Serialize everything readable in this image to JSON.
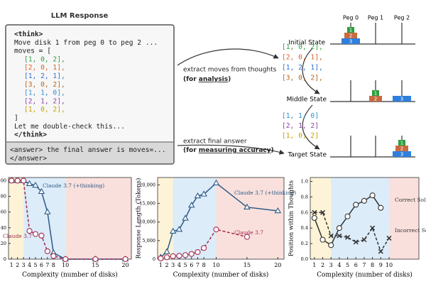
{
  "diagram": {
    "response_title": "LLM Response",
    "think_lines": [
      "<think>",
      "Move disk 1 from peg 0 to peg 2 ...",
      "moves = ["
    ],
    "think_moves": [
      {
        "text": "[1, 0, 2],",
        "color": "#2e9e3e"
      },
      {
        "text": "[2, 0, 1],",
        "color": "#d9622b"
      },
      {
        "text": "[1, 2, 1],",
        "color": "#2f6fd6"
      },
      {
        "text": "[3, 0, 2],",
        "color": "#b5651d"
      },
      {
        "text": "[1, 1, 0],",
        "color": "#2f8fd0"
      },
      {
        "text": "[2, 1, 2],",
        "color": "#8e44ad"
      },
      {
        "text": "[1, 0, 2],",
        "color": "#c8a000"
      }
    ],
    "think_end": [
      "]",
      "Let me double-check this...",
      "</think>"
    ],
    "answer_lines": [
      "<answer> the final answer is moves=...",
      "</answer>"
    ],
    "extract_moves": {
      "line1": "extract moves  from thoughts",
      "line2_pre": "(for ",
      "line2_em": "analysis",
      "line2_post": ")"
    },
    "extract_answer": {
      "line1": "extract final answer",
      "line2_pre": "(for ",
      "line2_em": "measuring accuracy",
      "line2_post": ")"
    },
    "pegs": [
      "Peg 0",
      "Peg 1",
      "Peg 2"
    ],
    "states": [
      "Initial State",
      "Middle State",
      "Target State"
    ],
    "disk_labels": [
      "1",
      "2",
      "3"
    ],
    "moves_a": [
      {
        "text": "[1, 0, 2],",
        "color": "#2e9e3e"
      },
      {
        "text": "[2, 0, 1],",
        "color": "#d9622b"
      },
      {
        "text": "[1, 2, 1],",
        "color": "#2f6fd6"
      },
      {
        "text": "[3, 0, 2],",
        "color": "#b5651d"
      }
    ],
    "moves_b": [
      {
        "text": "[1, 1, 0]",
        "color": "#2f8fd0"
      },
      {
        "text": "[2, 1, 2]",
        "color": "#8e44ad"
      },
      {
        "text": "[1, 0, 2]",
        "color": "#c8a000"
      }
    ]
  },
  "chart_data": [
    {
      "type": "line",
      "x_label": "Complexity (number of disks)",
      "xlim": [
        0.5,
        21
      ],
      "xticks": [
        1,
        2,
        3,
        4,
        5,
        6,
        7,
        8,
        10,
        15,
        20
      ],
      "ylim": [
        0,
        104
      ],
      "yticks": [
        0,
        20,
        40,
        60,
        80,
        100
      ],
      "regions": [
        {
          "from": 0.5,
          "to": 3,
          "color": "#fdf3d6"
        },
        {
          "from": 3,
          "to": 10,
          "color": "#dcecf9"
        },
        {
          "from": 10,
          "to": 21,
          "color": "#f9e0dc"
        }
      ],
      "series": [
        {
          "name": "Claude 3.7 (+thinking)",
          "color": "#2c5a86",
          "marker": "triangle",
          "dashed": false,
          "x": [
            1,
            2,
            3,
            4,
            5,
            6,
            7,
            8,
            10,
            15,
            20
          ],
          "values": [
            100,
            100,
            100,
            96,
            94,
            86,
            60,
            8,
            0,
            0,
            0
          ]
        },
        {
          "name": "Claude 3.7",
          "color": "#a3284f",
          "marker": "circle",
          "dashed": true,
          "x": [
            1,
            2,
            3,
            4,
            5,
            6,
            7,
            8,
            10,
            15,
            20
          ],
          "values": [
            100,
            100,
            100,
            36,
            32,
            30,
            10,
            4,
            0,
            0,
            0
          ]
        }
      ]
    },
    {
      "type": "line",
      "x_label": "Complexity (number of disks)",
      "y_label": "Response Length (Tokens)",
      "xlim": [
        0.5,
        21
      ],
      "xticks": [
        1,
        2,
        3,
        4,
        5,
        6,
        7,
        8,
        10,
        15,
        20
      ],
      "ylim": [
        0,
        22000
      ],
      "yticks": [
        0,
        {
          "value": 5000,
          "label": "5,000"
        },
        {
          "value": 10000,
          "label": "10,000"
        },
        {
          "value": 15000,
          "label": "15,000"
        },
        {
          "value": 20000,
          "label": "20,000"
        }
      ],
      "regions": [
        {
          "from": 0.5,
          "to": 3,
          "color": "#fdf3d6"
        },
        {
          "from": 3,
          "to": 10,
          "color": "#dcecf9"
        },
        {
          "from": 10,
          "to": 21,
          "color": "#f9e0dc"
        }
      ],
      "series": [
        {
          "name": "Claude 3.7 (+thinking)",
          "color": "#2c5a86",
          "marker": "triangle",
          "dashed": false,
          "x": [
            1,
            2,
            3,
            4,
            5,
            6,
            7,
            8,
            10,
            15,
            20
          ],
          "values": [
            500,
            2000,
            7500,
            8000,
            11000,
            14500,
            17000,
            17500,
            20500,
            14000,
            13000
          ]
        },
        {
          "name": "Claude 3.7",
          "color": "#a3284f",
          "marker": "circle",
          "dashed": true,
          "x": [
            1,
            2,
            3,
            4,
            5,
            6,
            7,
            8,
            10,
            15
          ],
          "values": [
            200,
            500,
            800,
            900,
            1100,
            1400,
            1900,
            3000,
            8000,
            6000
          ]
        }
      ]
    },
    {
      "type": "line",
      "x_label": "Complexity (number of disks)",
      "y_label": "Position within Thoughts",
      "xlim": [
        0.5,
        13.6
      ],
      "xticks": [
        1,
        2,
        3,
        4,
        5,
        6,
        7,
        8,
        9,
        10
      ],
      "ylim": [
        0,
        1.05
      ],
      "yticks": [
        {
          "value": 0,
          "label": "0.0"
        },
        0.2,
        0.4,
        0.6,
        0.8,
        {
          "value": 1,
          "label": "1.0"
        }
      ],
      "regions": [
        {
          "from": 0.5,
          "to": 3,
          "color": "#fdf3d6"
        },
        {
          "from": 3,
          "to": 10,
          "color": "#dcecf9"
        },
        {
          "from": 10,
          "to": 13.6,
          "color": "#f9e0dc"
        }
      ],
      "series": [
        {
          "name": "Correct Solutions",
          "color": "#333333",
          "marker": "circle",
          "dashed": false,
          "x": [
            1,
            2,
            3,
            4,
            5,
            6,
            7,
            8,
            9
          ],
          "values": [
            0.53,
            0.25,
            0.18,
            0.4,
            0.55,
            0.7,
            0.75,
            0.82,
            0.66
          ]
        },
        {
          "name": "Incorrect Solutions",
          "color": "#333333",
          "marker": "cross",
          "dashed": true,
          "x": [
            1,
            2,
            3,
            4,
            5,
            6,
            7,
            8,
            9,
            10
          ],
          "values": [
            0.6,
            0.6,
            0.3,
            0.3,
            0.28,
            0.22,
            0.25,
            0.4,
            0.1,
            0.27
          ]
        }
      ]
    }
  ]
}
